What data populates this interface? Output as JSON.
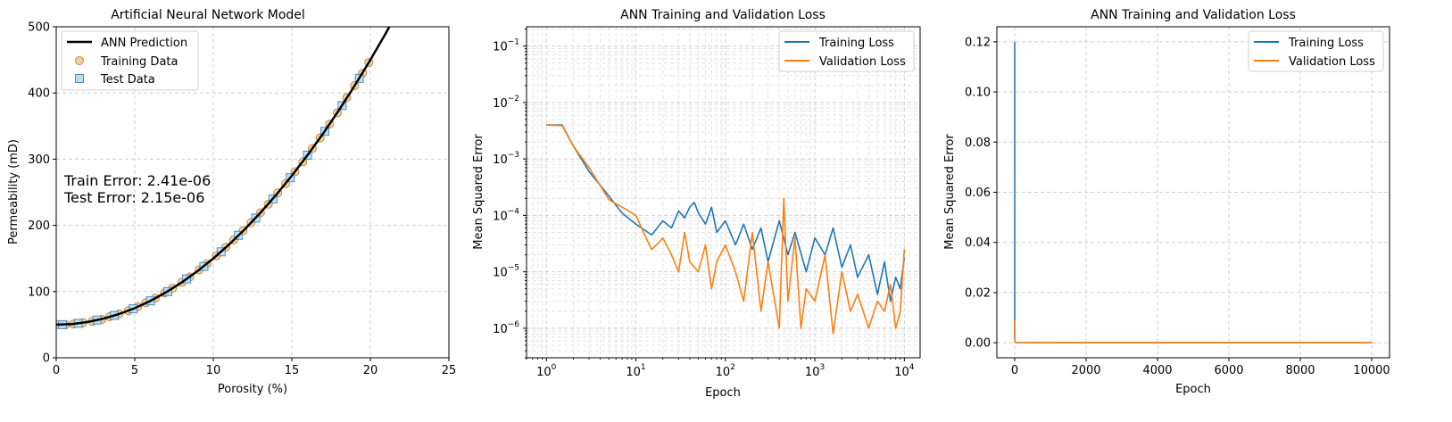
{
  "chart_data": [
    {
      "type": "scatter",
      "title": "Artificial Neural Network Model",
      "xlabel": "Porosity (%)",
      "ylabel": "Permeability (mD)",
      "xlim": [
        0,
        25
      ],
      "ylim": [
        0,
        500
      ],
      "xticks": [
        0,
        5,
        10,
        15,
        20,
        25
      ],
      "yticks": [
        0,
        100,
        200,
        300,
        400,
        500
      ],
      "grid": true,
      "legend_position": "top-left",
      "annotations": [
        "Train Error: 2.41e-06",
        "Test Error: 2.15e-06"
      ],
      "series": [
        {
          "name": "ANN Prediction",
          "kind": "line",
          "color": "#000000",
          "x": [
            0,
            1,
            2,
            3,
            4,
            5,
            6,
            7,
            8,
            9,
            10,
            11,
            12,
            13,
            14,
            15,
            16,
            17,
            18,
            19,
            20,
            21,
            21.3
          ],
          "y": [
            50,
            51,
            54,
            59,
            66,
            75,
            86,
            99,
            114,
            131,
            150,
            171,
            194,
            219,
            246,
            275,
            306,
            339,
            374,
            411,
            450,
            491,
            504
          ]
        },
        {
          "name": "Training Data",
          "kind": "scatter",
          "marker": "circle",
          "color": "#f5cd9a",
          "edge": "#c28a3e",
          "x": [
            0.1,
            0.6,
            1.1,
            1.7,
            2.3,
            2.9,
            3.4,
            4.0,
            4.6,
            5.2,
            5.7,
            6.3,
            6.9,
            7.4,
            8.0,
            8.5,
            9.1,
            9.6,
            10.2,
            10.8,
            11.3,
            11.9,
            12.4,
            13.0,
            13.5,
            14.1,
            14.6,
            15.2,
            15.7,
            16.3,
            16.8,
            17.4,
            17.9,
            18.5,
            19.0,
            19.5,
            19.9
          ],
          "y": [
            50,
            50,
            51,
            53,
            55,
            58,
            62,
            66,
            71,
            77,
            83,
            90,
            98,
            105,
            114,
            122,
            133,
            142,
            154,
            167,
            178,
            192,
            204,
            219,
            232,
            249,
            263,
            281,
            296,
            316,
            332,
            353,
            370,
            393,
            411,
            430,
            446
          ]
        },
        {
          "name": "Test Data",
          "kind": "scatter",
          "marker": "square",
          "color": "#b7dff2",
          "edge": "#4a8fc2",
          "x": [
            0.4,
            1.4,
            2.6,
            3.7,
            4.9,
            6.0,
            7.1,
            8.3,
            9.4,
            10.5,
            11.6,
            12.7,
            13.8,
            14.9,
            16.0,
            17.1,
            18.2,
            19.3
          ],
          "y": [
            50,
            52,
            57,
            64,
            74,
            86,
            100,
            119,
            138,
            160,
            185,
            211,
            240,
            272,
            306,
            342,
            381,
            422
          ]
        }
      ]
    },
    {
      "type": "line",
      "title": "ANN Training and Validation Loss",
      "xlabel": "Epoch",
      "ylabel": "Mean Squared Error",
      "xscale": "log",
      "yscale": "log",
      "xlim": [
        0.6,
        15000
      ],
      "ylim": [
        3e-07,
        0.22
      ],
      "grid": true,
      "legend_position": "top-right",
      "series": [
        {
          "name": "Training Loss",
          "color": "#1f77b4",
          "x": [
            1,
            1.5,
            2,
            3,
            5,
            7,
            10,
            15,
            20,
            25,
            30,
            35,
            40,
            45,
            50,
            60,
            70,
            80,
            100,
            130,
            160,
            200,
            250,
            300,
            400,
            500,
            600,
            800,
            1000,
            1300,
            1600,
            2000,
            2500,
            3000,
            4000,
            5000,
            6000,
            7000,
            8000,
            9000,
            10000
          ],
          "y": [
            0.004,
            0.004,
            0.0017,
            0.0006,
            0.00022,
            0.00011,
            7e-05,
            4.5e-05,
            8e-05,
            6e-05,
            0.00012,
            9e-05,
            0.00014,
            0.00017,
            0.00011,
            7e-05,
            0.00014,
            5e-05,
            8e-05,
            3e-05,
            7e-05,
            2.5e-05,
            6e-05,
            1.5e-05,
            8e-05,
            2e-05,
            5e-05,
            1e-05,
            4e-05,
            2e-05,
            6e-05,
            1.2e-05,
            3e-05,
            8e-06,
            2e-05,
            4e-06,
            1.5e-05,
            3e-06,
            8e-06,
            5e-06,
            1.8e-05
          ]
        },
        {
          "name": "Validation Loss",
          "color": "#ff7f0e",
          "x": [
            1,
            1.5,
            2,
            3,
            5,
            7,
            10,
            13,
            15,
            17,
            20,
            25,
            30,
            35,
            40,
            50,
            60,
            70,
            80,
            100,
            130,
            160,
            200,
            250,
            300,
            400,
            450,
            500,
            600,
            700,
            800,
            1000,
            1300,
            1600,
            2000,
            2500,
            3000,
            4000,
            5000,
            6000,
            7000,
            8000,
            9000,
            10000
          ],
          "y": [
            0.004,
            0.0039,
            0.0017,
            0.0007,
            0.00019,
            0.00014,
            0.0001,
            4e-05,
            2.5e-05,
            3e-05,
            4e-05,
            2e-05,
            1e-05,
            5e-05,
            1.5e-05,
            1e-05,
            3e-05,
            5e-06,
            1.5e-05,
            3e-05,
            1e-05,
            3e-06,
            5e-05,
            2e-06,
            1.5e-05,
            1e-06,
            0.0002,
            3e-06,
            4e-05,
            1e-06,
            5e-06,
            3e-06,
            2e-05,
            8e-07,
            1e-05,
            2e-06,
            4e-06,
            1e-06,
            3e-06,
            2e-06,
            6e-06,
            1e-06,
            2e-06,
            2.5e-05
          ]
        }
      ]
    },
    {
      "type": "line",
      "title": "ANN Training and Validation Loss",
      "xlabel": "Epoch",
      "ylabel": "Mean Squared Error",
      "xlim": [
        -500,
        10500
      ],
      "ylim": [
        -0.006,
        0.126
      ],
      "xticks": [
        0,
        2000,
        4000,
        6000,
        8000,
        10000
      ],
      "yticks": [
        0.0,
        0.02,
        0.04,
        0.06,
        0.08,
        0.1,
        0.12
      ],
      "grid": true,
      "legend_position": "top-right",
      "series": [
        {
          "name": "Training Loss",
          "color": "#1f77b4",
          "x": [
            0,
            1,
            5,
            20,
            100,
            1000,
            5000,
            10000
          ],
          "y": [
            0.12,
            0.004,
            0.0005,
            0.0001,
            5e-05,
            2e-05,
            1e-05,
            1e-05
          ]
        },
        {
          "name": "Validation Loss",
          "color": "#ff7f0e",
          "x": [
            0,
            1,
            5,
            20,
            100,
            1000,
            5000,
            10000
          ],
          "y": [
            0.009,
            0.004,
            0.0005,
            0.0001,
            5e-05,
            2e-05,
            1e-05,
            1e-05
          ]
        }
      ]
    }
  ]
}
